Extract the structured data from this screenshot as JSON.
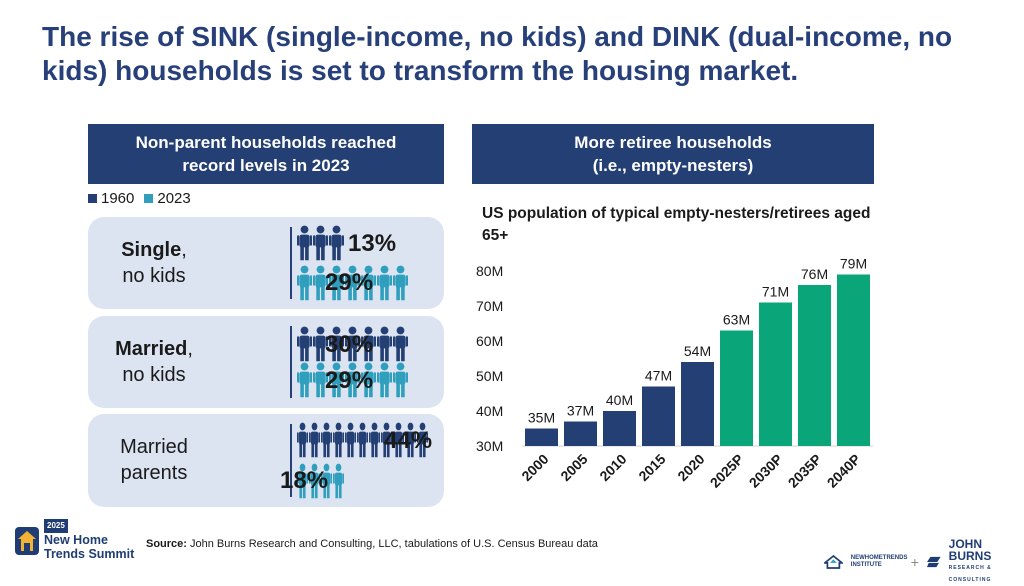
{
  "headline": "The rise of SINK (single-income, no kids) and DINK (dual-income, no kids) households is set to transform the housing market.",
  "left_panel": {
    "header_line1": "Non-parent households reached",
    "header_line2": "record levels in 2023",
    "legend": [
      {
        "label": "1960",
        "color": "#243f73"
      },
      {
        "label": "2023",
        "color": "#2f9fbd"
      }
    ],
    "cards": [
      {
        "label_bold": "Single",
        "label_rest": ",",
        "label_line2": "no kids",
        "pct_1960": "13%",
        "pct_2023": "29%",
        "icons_1960": 3,
        "icons_2023": 7
      },
      {
        "label_bold": "Married",
        "label_rest": ",",
        "label_line2": "no kids",
        "pct_1960": "30%",
        "pct_2023": "29%",
        "icons_1960": 7,
        "icons_2023": 7
      },
      {
        "label_bold": "",
        "label_rest": "Married",
        "label_line2": "parents",
        "pct_1960": "44%",
        "pct_2023": "18%",
        "icons_1960": 11,
        "icons_2023": 4
      }
    ]
  },
  "right_panel": {
    "header_line1": "More retiree households",
    "header_line2": "(i.e., empty-nesters)"
  },
  "chart_data": {
    "type": "bar",
    "title": "US population of typical empty-nesters/retirees aged 65+",
    "categories": [
      "2000",
      "2005",
      "2010",
      "2015",
      "2020",
      "2025P",
      "2030P",
      "2035P",
      "2040P"
    ],
    "values": [
      35,
      37,
      40,
      47,
      54,
      63,
      71,
      76,
      79
    ],
    "data_labels": [
      "35M",
      "37M",
      "40M",
      "47M",
      "54M",
      "63M",
      "71M",
      "76M",
      "79M"
    ],
    "y_ticks": [
      "30M",
      "40M",
      "50M",
      "60M",
      "70M",
      "80M"
    ],
    "ylim": [
      30,
      80
    ],
    "colors": {
      "actual": "#243f73",
      "projected": "#0aa67a"
    },
    "projected_from_index": 5
  },
  "source": {
    "prefix": "Source:",
    "text": " John Burns Research and Consulting, LLC, tabulations of U.S. Census Bureau data"
  },
  "footer": {
    "left_logo_year": "2025",
    "left_logo_line1": "New Home",
    "left_logo_line2": "Trends Summit",
    "right_logo_nht": "NEWHOMETRENDS INSTITUTE",
    "right_plus": "+",
    "right_logo_jb": "JOHN BURNS",
    "right_logo_jb_sub": "RESEARCH & CONSULTING"
  }
}
